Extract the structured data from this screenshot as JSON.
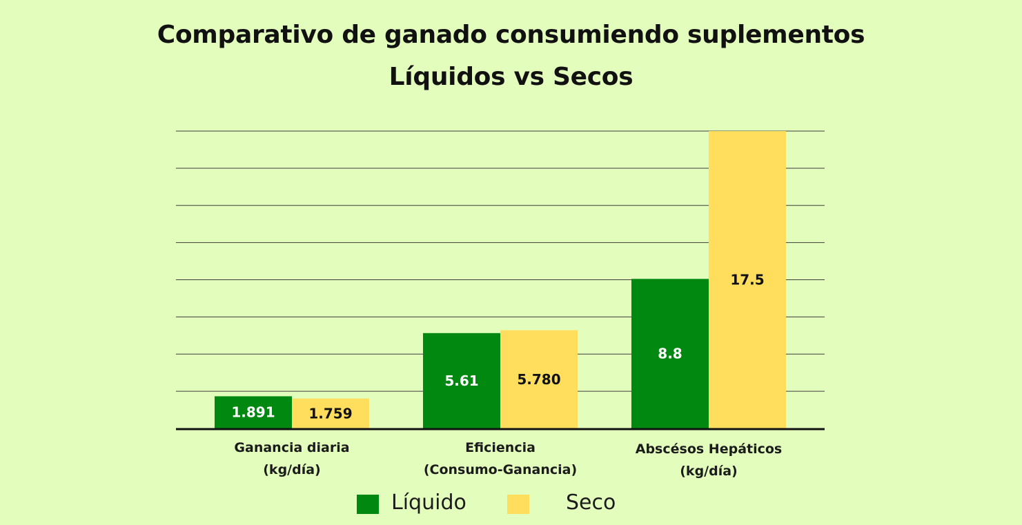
{
  "chart_data": {
    "type": "bar",
    "title": "Comparativo de ganado consumiendo suplementos",
    "subtitle": "Líquidos vs Secos",
    "categories": [
      [
        "Ganancia diaria",
        "(kg/día)"
      ],
      [
        "Eficiencia",
        "(Consumo-Ganancia)"
      ],
      [
        "Abscésos Hepáticos",
        "(kg/día)"
      ]
    ],
    "series": [
      {
        "name": "Líquido",
        "color": "#008811",
        "values": [
          1.891,
          5.61,
          8.8
        ],
        "labels": [
          "1.891",
          "5.61",
          "8.8"
        ],
        "label_color": "#ffffff"
      },
      {
        "name": "Seco",
        "color": "#ffde5e",
        "values": [
          1.759,
          5.78,
          17.5
        ],
        "labels": [
          "1.759",
          "5.780",
          "17.5"
        ],
        "label_color": "#111111"
      }
    ],
    "ylim": [
      0,
      17.5
    ],
    "grid": true,
    "legend": "bottom-center",
    "xlabel": "",
    "ylabel": ""
  }
}
